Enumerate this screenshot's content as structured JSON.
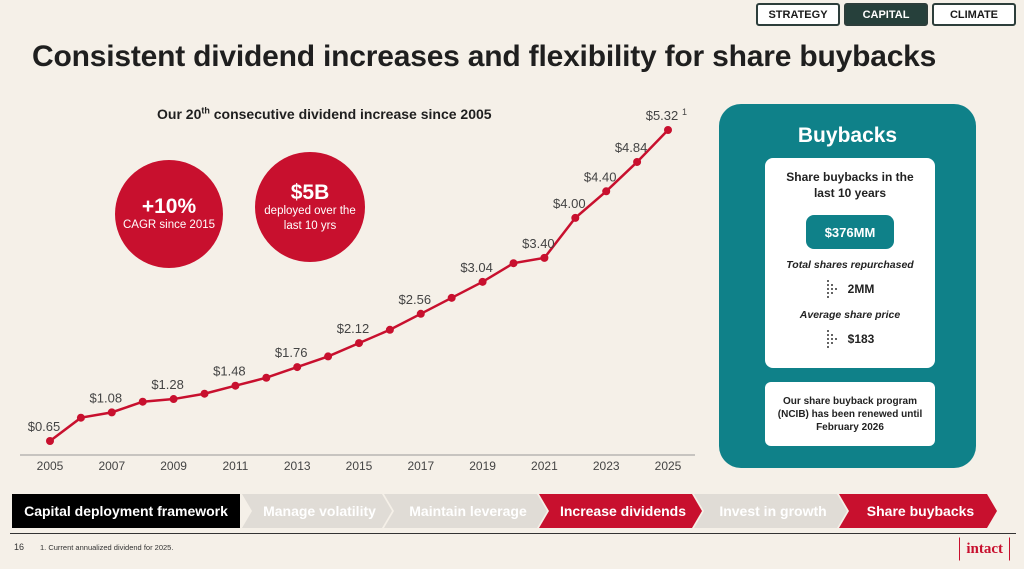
{
  "nav": {
    "tabs": [
      {
        "label": "STRATEGY",
        "active": false
      },
      {
        "label": "CAPITAL",
        "active": true
      },
      {
        "label": "CLIMATE",
        "active": false
      }
    ]
  },
  "page": {
    "title": "Consistent dividend increases and flexibility for share buybacks",
    "page_number": "16",
    "footnote": "1.  Current annualized dividend for 2025.",
    "logo": "intact"
  },
  "chart_section": {
    "subtitle_pre": "Our 20",
    "subtitle_sup": "th",
    "subtitle_post": " consecutive dividend increase since 2005",
    "stats": [
      {
        "value": "+10%",
        "label": "CAGR since 2015"
      },
      {
        "value": "$5B",
        "label": "deployed over the last 10 yrs"
      }
    ]
  },
  "chart_data": {
    "type": "line",
    "title": "Our 20th consecutive dividend increase since 2005",
    "xlabel": "",
    "ylabel": "",
    "x": [
      2005,
      2006,
      2007,
      2008,
      2009,
      2010,
      2011,
      2012,
      2013,
      2014,
      2015,
      2016,
      2017,
      2018,
      2019,
      2020,
      2021,
      2022,
      2023,
      2024,
      2025
    ],
    "values": [
      0.65,
      1.0,
      1.08,
      1.24,
      1.28,
      1.36,
      1.48,
      1.6,
      1.76,
      1.92,
      2.12,
      2.32,
      2.56,
      2.8,
      3.04,
      3.32,
      3.4,
      4.0,
      4.4,
      4.84,
      5.32
    ],
    "labeled_points": [
      {
        "x": 2005,
        "label": "$0.65"
      },
      {
        "x": 2007,
        "label": "$1.08"
      },
      {
        "x": 2009,
        "label": "$1.28"
      },
      {
        "x": 2011,
        "label": "$1.48"
      },
      {
        "x": 2013,
        "label": "$1.76"
      },
      {
        "x": 2015,
        "label": "$2.12"
      },
      {
        "x": 2017,
        "label": "$2.56"
      },
      {
        "x": 2019,
        "label": "$3.04"
      },
      {
        "x": 2021,
        "label": "$3.40"
      },
      {
        "x": 2022,
        "label": "$4.00"
      },
      {
        "x": 2023,
        "label": "$4.40"
      },
      {
        "x": 2024,
        "label": "$4.84"
      },
      {
        "x": 2025,
        "label": "$5.32",
        "footnote": "1"
      }
    ],
    "x_ticks": [
      "2005",
      "2007",
      "2009",
      "2011",
      "2013",
      "2015",
      "2017",
      "2019",
      "2021",
      "2023",
      "2025"
    ],
    "ylim": [
      0.65,
      5.32
    ],
    "grid": false,
    "line_color": "#c8102e"
  },
  "buybacks": {
    "title": "Buybacks",
    "card_heading": "Share buybacks in the last 10 years",
    "total_value": "$376MM",
    "repurchased_label": "Total shares repurchased",
    "repurchased_value": "2MM",
    "avg_price_label": "Average share price",
    "avg_price_value": "$183",
    "note": "Our share buyback program (NCIB) has been renewed until February 2026"
  },
  "framework": {
    "items": [
      {
        "label": "Capital deployment framework",
        "style": "header"
      },
      {
        "label": "Manage volatility",
        "style": "muted"
      },
      {
        "label": "Maintain leverage",
        "style": "muted"
      },
      {
        "label": "Increase dividends",
        "style": "highlight"
      },
      {
        "label": "Invest in growth",
        "style": "muted"
      },
      {
        "label": "Share buybacks",
        "style": "highlight"
      }
    ],
    "colors": {
      "muted": "#e0dcd6",
      "highlight": "#c8102e"
    }
  },
  "colors": {
    "accent": "#c8102e",
    "teal": "#0f8189",
    "dark_teal": "#26403b"
  }
}
